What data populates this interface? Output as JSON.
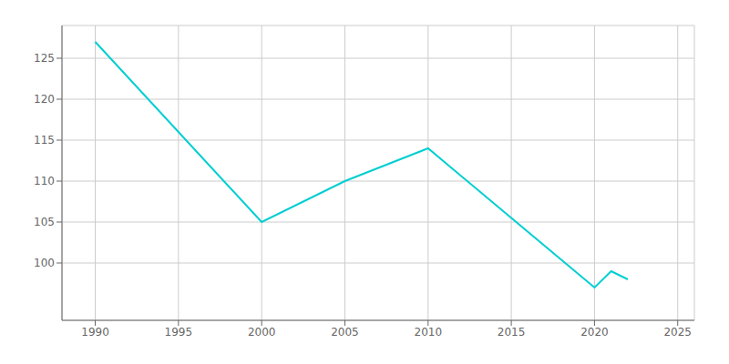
{
  "chart_data": {
    "type": "line",
    "x": [
      1990,
      2000,
      2005,
      2010,
      2020,
      2021,
      2022
    ],
    "values": [
      127,
      105,
      110,
      114,
      97,
      99,
      98
    ],
    "color": "#00CED1",
    "xlim": [
      1988,
      2026
    ],
    "ylim": [
      93,
      129
    ],
    "xticks": [
      1990,
      1995,
      2000,
      2005,
      2010,
      2015,
      2020,
      2025
    ],
    "yticks": [
      100,
      105,
      110,
      115,
      120,
      125
    ],
    "grid": true
  }
}
